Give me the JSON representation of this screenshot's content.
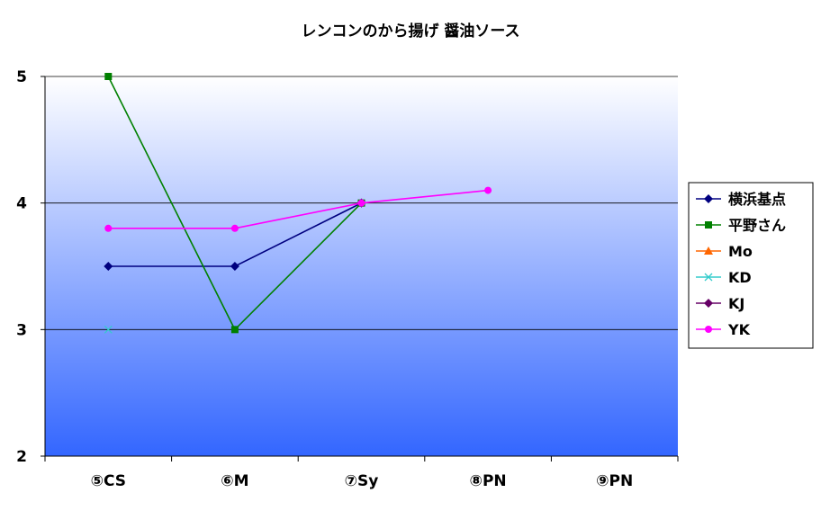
{
  "chart_data": {
    "type": "line",
    "title": "レンコンのから揚げ 醤油ソース",
    "categories": [
      "⑤CS",
      "⑥M",
      "⑦Sy",
      "⑧PN",
      "⑨PN"
    ],
    "ylim": [
      2,
      5
    ],
    "yticks": [
      2,
      3,
      4,
      5
    ],
    "grid": true,
    "legend_position": "right",
    "series": [
      {
        "name": "横浜基点",
        "values": [
          3.5,
          3.5,
          4.0,
          null,
          null
        ],
        "color": "#000080",
        "marker": "diamond"
      },
      {
        "name": "平野さん",
        "values": [
          5.0,
          3.0,
          4.0,
          null,
          null
        ],
        "color": "#008000",
        "marker": "square"
      },
      {
        "name": "Mo",
        "values": [
          null,
          null,
          null,
          null,
          null
        ],
        "color": "#FF6600",
        "marker": "triangle"
      },
      {
        "name": "KD",
        "values": [
          3.0,
          null,
          null,
          null,
          null
        ],
        "color": "#33CCCC",
        "marker": "x"
      },
      {
        "name": "KJ",
        "values": [
          null,
          null,
          4.0,
          null,
          null
        ],
        "color": "#660066",
        "marker": "diamond"
      },
      {
        "name": "YK",
        "values": [
          3.8,
          3.8,
          4.0,
          4.1,
          null
        ],
        "color": "#FF00FF",
        "marker": "circle"
      }
    ],
    "plot_background": {
      "top": "#ffffff",
      "bottom": "#3366ff"
    }
  }
}
